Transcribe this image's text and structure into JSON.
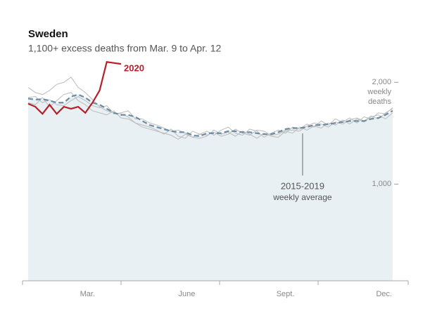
{
  "chart_data": {
    "type": "line",
    "title": "Sweden",
    "subtitle": "1,100+ excess deaths from Mar. 9 to Apr. 12",
    "y_label_lines": [
      "weekly",
      "deaths"
    ],
    "annotation_lines": [
      "2015-2019",
      "weekly average"
    ],
    "x": [
      1,
      2,
      3,
      4,
      5,
      6,
      7,
      8,
      9,
      10,
      11,
      12,
      13,
      14,
      15,
      16,
      17,
      18,
      19,
      20,
      21,
      22,
      23,
      24,
      25,
      26,
      27,
      28,
      29,
      30,
      31,
      32,
      33,
      34,
      35,
      36,
      37,
      38,
      39,
      40,
      41,
      42,
      43,
      44,
      45,
      46,
      47,
      48,
      49,
      50,
      51,
      52
    ],
    "xlim": [
      1,
      53
    ],
    "xticks": [
      {
        "value": 9.3,
        "label": "Mar."
      },
      {
        "value": 23.2,
        "label": "June"
      },
      {
        "value": 37,
        "label": "Sept."
      },
      {
        "value": 50.8,
        "label": "Dec."
      }
    ],
    "ylim": [
      50,
      2250
    ],
    "yticks": [
      {
        "value": 1000,
        "label": "1,000"
      },
      {
        "value": 2000,
        "label": "2,000"
      }
    ],
    "series": [
      {
        "color": "#bbbbbb",
        "values": [
          1950,
          1900,
          1880,
          1920,
          1980,
          2000,
          2050,
          1950,
          1900,
          1830,
          1760,
          1720,
          1700,
          1690,
          1660,
          1600,
          1580,
          1560,
          1530,
          1490,
          1540,
          1470,
          1450,
          1520,
          1490,
          1520,
          1480,
          1530,
          1560,
          1500,
          1480,
          1540,
          1520,
          1460,
          1500,
          1530,
          1500,
          1560,
          1540,
          1590,
          1560,
          1620,
          1580,
          1640,
          1610,
          1650,
          1600,
          1660,
          1640,
          1700,
          1690,
          1750
        ]
      },
      {
        "color": "#bbbbbb",
        "values": [
          1800,
          1780,
          1850,
          1760,
          1820,
          1880,
          1900,
          1820,
          1780,
          1720,
          1700,
          1680,
          1720,
          1650,
          1640,
          1600,
          1560,
          1540,
          1520,
          1500,
          1480,
          1440,
          1490,
          1460,
          1450,
          1470,
          1530,
          1490,
          1510,
          1470,
          1520,
          1490,
          1450,
          1500,
          1470,
          1460,
          1520,
          1500,
          1560,
          1530,
          1570,
          1550,
          1600,
          1580,
          1630,
          1590,
          1640,
          1610,
          1660,
          1680,
          1640,
          1700
        ]
      },
      {
        "color": "#bbbbbb",
        "values": [
          1850,
          1860,
          1800,
          1830,
          1780,
          1770,
          1820,
          1860,
          1820,
          1770,
          1750,
          1770,
          1690,
          1700,
          1720,
          1640,
          1640,
          1600,
          1580,
          1550,
          1520,
          1530,
          1500,
          1460,
          1490,
          1480,
          1510,
          1470,
          1490,
          1540,
          1500,
          1480,
          1530,
          1520,
          1480,
          1490,
          1530,
          1530,
          1520,
          1570,
          1600,
          1590,
          1560,
          1610,
          1590,
          1630,
          1650,
          1620,
          1670,
          1640,
          1700,
          1740
        ]
      },
      {
        "color": "#6b8ca3",
        "dashed": true,
        "fill": "#e9f0f4",
        "values": [
          1840,
          1830,
          1835,
          1820,
          1800,
          1800,
          1860,
          1880,
          1850,
          1800,
          1780,
          1740,
          1700,
          1680,
          1680,
          1660,
          1620,
          1580,
          1560,
          1540,
          1520,
          1510,
          1510,
          1480,
          1470,
          1500,
          1500,
          1500,
          1520,
          1520,
          1510,
          1510,
          1500,
          1490,
          1490,
          1510,
          1540,
          1550,
          1550,
          1560,
          1580,
          1580,
          1590,
          1600,
          1610,
          1620,
          1620,
          1620,
          1640,
          1650,
          1680,
          1720
        ]
      },
      {
        "name": "2020",
        "color": "#b5202a",
        "values": [
          1790,
          1760,
          1690,
          1780,
          1690,
          1760,
          1740,
          1760,
          1700,
          1800,
          1920,
          2200,
          2190,
          2180,
          null,
          null,
          null,
          null,
          null,
          null,
          null,
          null,
          null,
          null,
          null,
          null,
          null,
          null,
          null,
          null,
          null,
          null,
          null,
          null,
          null,
          null,
          null,
          null,
          null,
          null,
          null,
          null,
          null,
          null,
          null,
          null,
          null,
          null,
          null,
          null,
          null,
          null
        ]
      }
    ]
  }
}
